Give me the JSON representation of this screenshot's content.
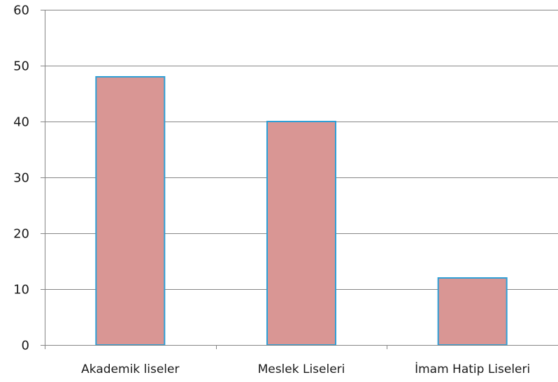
{
  "chart_data": {
    "type": "bar",
    "title": "",
    "xlabel": "",
    "ylabel": "",
    "categories": [
      "Akademik liseler",
      "Meslek Liseleri",
      "İmam Hatip Liseleri"
    ],
    "values": [
      48,
      40,
      12
    ],
    "ylim": [
      0,
      60
    ],
    "yticks": [
      0,
      10,
      20,
      30,
      40,
      50,
      60
    ],
    "grid": true,
    "legend": "none",
    "colors": {
      "bar_fill": "#d99694",
      "bar_stroke": "#2e9fd6",
      "grid": "#868686",
      "axis": "#868686"
    }
  }
}
